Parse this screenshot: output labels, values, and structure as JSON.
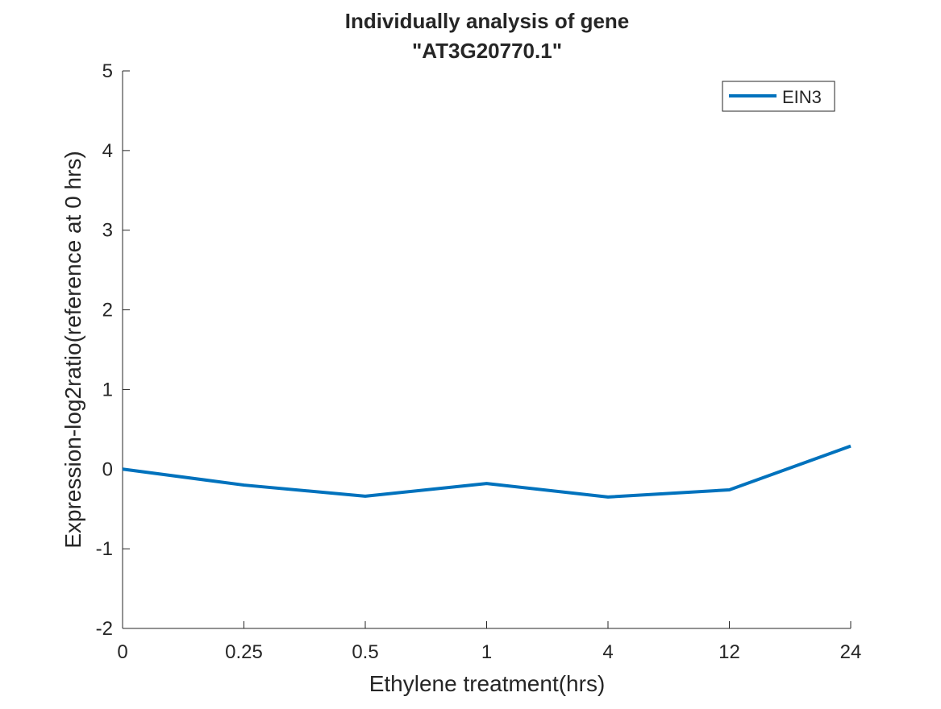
{
  "chart_data": {
    "type": "line",
    "title": [
      "Individually analysis of gene",
      "\"AT3G20770.1\""
    ],
    "xlabel": "Ethylene treatment(hrs)",
    "ylabel": "Expression-log2ratio(reference at 0 hrs)",
    "categories": [
      "0",
      "0.25",
      "0.5",
      "1",
      "4",
      "12",
      "24"
    ],
    "ylim": [
      -2,
      5
    ],
    "yticks": [
      "-2",
      "-1",
      "0",
      "1",
      "2",
      "3",
      "4",
      "5"
    ],
    "series": [
      {
        "name": "EIN3",
        "color": "#0072bd",
        "values": [
          0.0,
          -0.2,
          -0.34,
          -0.18,
          -0.35,
          -0.26,
          0.29
        ]
      }
    ],
    "legend": {
      "position": "top-right"
    },
    "grid": false
  }
}
